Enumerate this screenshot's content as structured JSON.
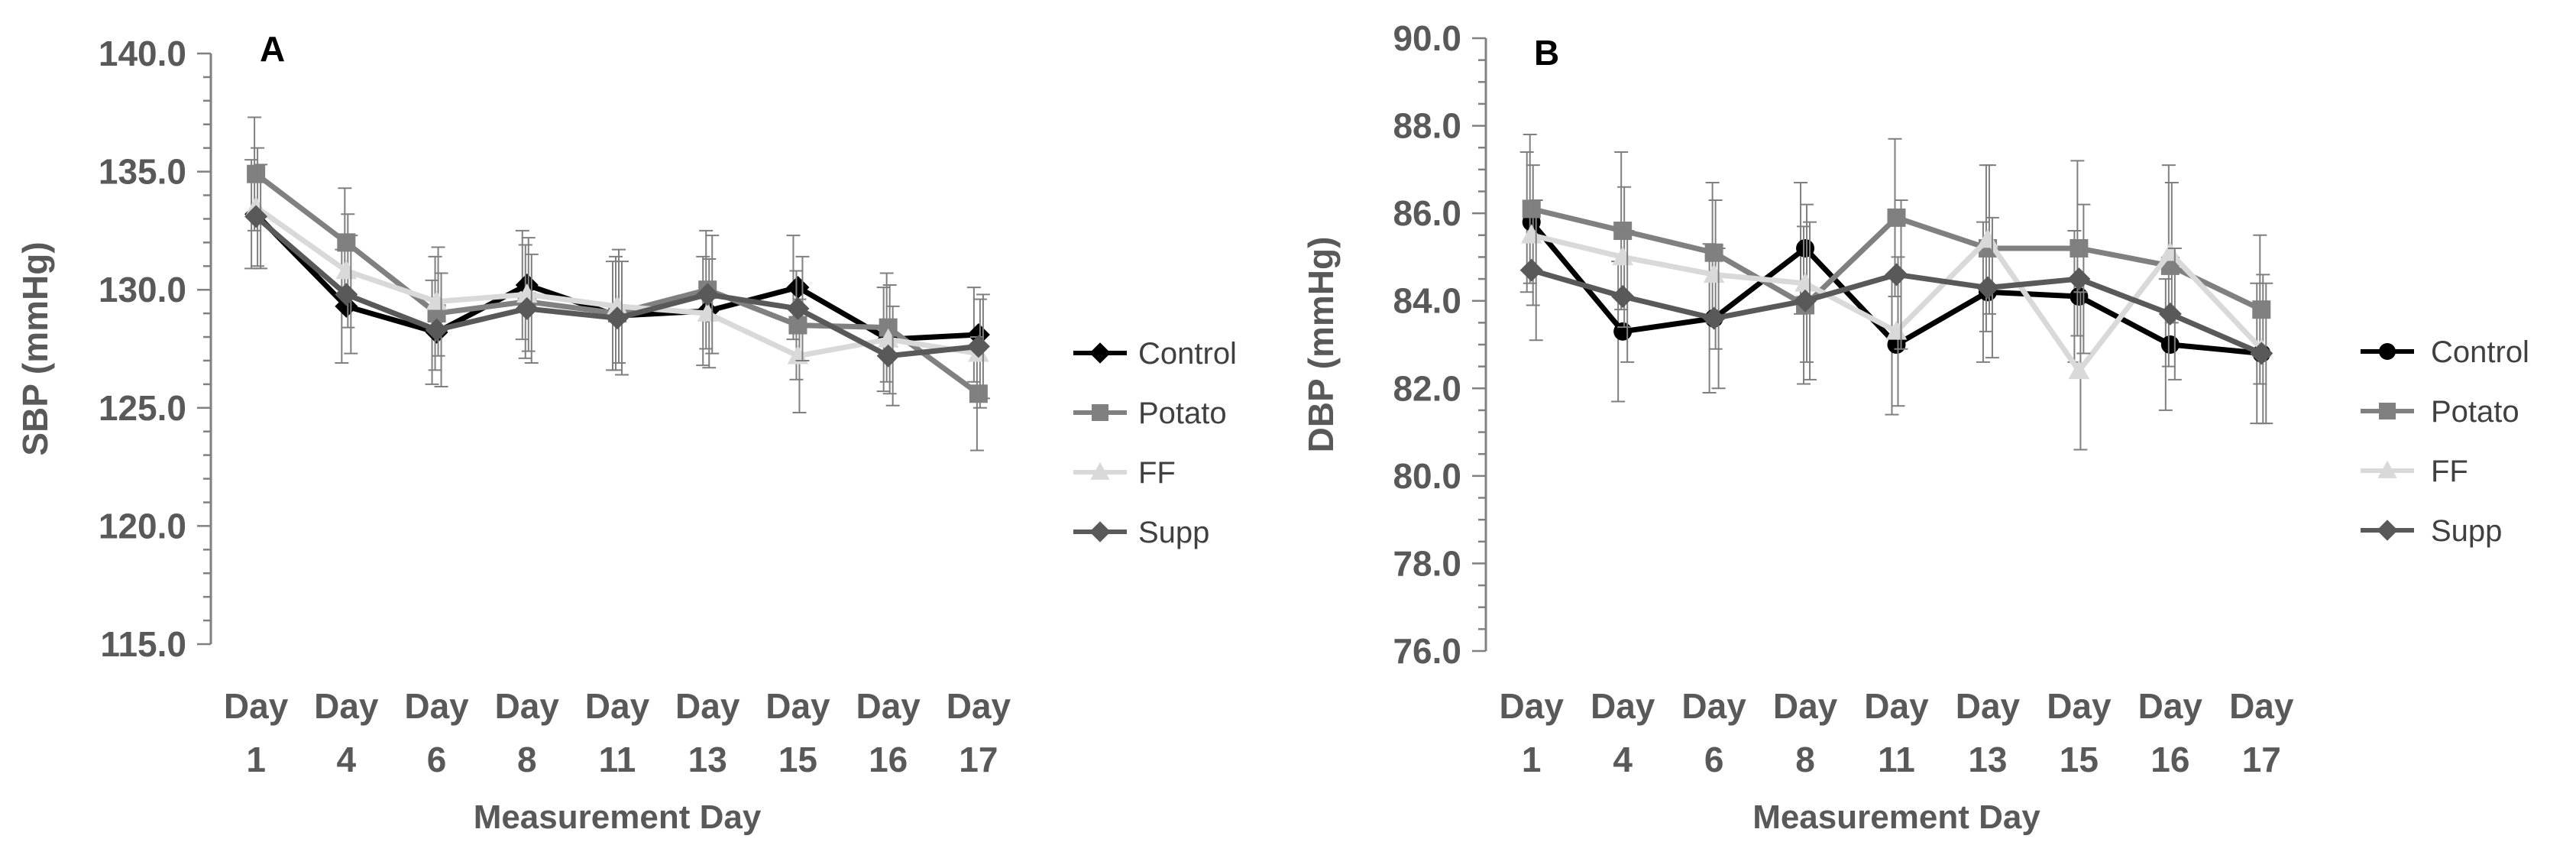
{
  "chart_data": [
    {
      "type": "line",
      "panel_label": "A",
      "title": "",
      "xlabel": "Measurement Day",
      "ylabel": "SBP (mmHg)",
      "ylim": [
        115,
        140
      ],
      "yticks": [
        115,
        120,
        125,
        130,
        135,
        140
      ],
      "ytick_labels": [
        "115.0",
        "120.0",
        "125.0",
        "130.0",
        "135.0",
        "140.0"
      ],
      "categories": [
        [
          "Day",
          "1"
        ],
        [
          "Day",
          "4"
        ],
        [
          "Day",
          "6"
        ],
        [
          "Day",
          "8"
        ],
        [
          "Day",
          "11"
        ],
        [
          "Day",
          "13"
        ],
        [
          "Day",
          "15"
        ],
        [
          "Day",
          "16"
        ],
        [
          "Day",
          "17"
        ]
      ],
      "grid": false,
      "legend_position": "right",
      "series": [
        {
          "name": "Control",
          "color": "#000000",
          "marker": "diamond",
          "values": [
            133.2,
            129.3,
            128.2,
            130.2,
            128.9,
            129.1,
            130.1,
            127.9,
            128.1
          ],
          "errors": [
            2.3,
            2.4,
            2.2,
            2.3,
            2.3,
            2.3,
            2.2,
            2.2,
            2.0
          ]
        },
        {
          "name": "Potato",
          "color": "#808080",
          "marker": "square",
          "values": [
            134.9,
            132.0,
            129.0,
            129.5,
            129.0,
            130.0,
            128.5,
            128.4,
            125.6
          ],
          "errors": [
            2.4,
            2.3,
            2.4,
            2.4,
            2.4,
            2.5,
            2.3,
            2.3,
            2.4
          ]
        },
        {
          "name": "FF",
          "color": "#d9d9d9",
          "marker": "triangle",
          "values": [
            133.5,
            130.8,
            129.5,
            129.8,
            129.3,
            129.0,
            127.2,
            127.9,
            127.3
          ],
          "errors": [
            2.5,
            2.4,
            2.3,
            2.4,
            2.4,
            2.3,
            2.4,
            2.3,
            2.3
          ]
        },
        {
          "name": "Supp",
          "color": "#595959",
          "marker": "diamond",
          "values": [
            133.1,
            129.8,
            128.3,
            129.2,
            128.8,
            129.8,
            129.2,
            127.2,
            127.6
          ],
          "errors": [
            2.2,
            2.5,
            2.4,
            2.3,
            2.4,
            2.5,
            2.2,
            2.1,
            2.2
          ]
        }
      ]
    },
    {
      "type": "line",
      "panel_label": "B",
      "title": "",
      "xlabel": "Measurement Day",
      "ylabel": "DBP (mmHg)",
      "ylim": [
        76,
        90
      ],
      "yticks": [
        76,
        78,
        80,
        82,
        84,
        86,
        88,
        90
      ],
      "ytick_labels": [
        "76.0",
        "78.0",
        "80.0",
        "82.0",
        "84.0",
        "86.0",
        "88.0",
        "90.0"
      ],
      "categories": [
        [
          "Day",
          "1"
        ],
        [
          "Day",
          "4"
        ],
        [
          "Day",
          "6"
        ],
        [
          "Day",
          "8"
        ],
        [
          "Day",
          "11"
        ],
        [
          "Day",
          "13"
        ],
        [
          "Day",
          "15"
        ],
        [
          "Day",
          "16"
        ],
        [
          "Day",
          "17"
        ]
      ],
      "grid": false,
      "legend_position": "right",
      "series": [
        {
          "name": "Control",
          "color": "#000000",
          "marker": "circle",
          "values": [
            85.8,
            83.3,
            83.6,
            85.2,
            83.0,
            84.2,
            84.1,
            83.0,
            82.8
          ],
          "errors": [
            1.6,
            1.6,
            1.7,
            1.5,
            1.6,
            1.6,
            1.5,
            1.5,
            1.6
          ]
        },
        {
          "name": "Potato",
          "color": "#808080",
          "marker": "square",
          "values": [
            86.1,
            85.6,
            85.1,
            83.9,
            85.9,
            85.2,
            85.2,
            84.8,
            83.8
          ],
          "errors": [
            1.7,
            1.8,
            1.6,
            1.8,
            1.8,
            1.9,
            2.0,
            2.3,
            1.7
          ]
        },
        {
          "name": "FF",
          "color": "#d9d9d9",
          "marker": "triangle",
          "values": [
            85.5,
            85.0,
            84.6,
            84.4,
            83.3,
            85.4,
            82.4,
            85.1,
            82.9
          ],
          "errors": [
            1.6,
            1.6,
            1.7,
            1.8,
            1.7,
            1.7,
            1.8,
            1.6,
            1.7
          ]
        },
        {
          "name": "Supp",
          "color": "#595959",
          "marker": "diamond",
          "values": [
            84.7,
            84.1,
            83.6,
            84.0,
            84.6,
            84.3,
            84.5,
            83.7,
            82.8
          ],
          "errors": [
            1.6,
            1.5,
            1.6,
            1.8,
            1.7,
            1.6,
            1.7,
            1.5,
            1.6
          ]
        }
      ]
    }
  ]
}
